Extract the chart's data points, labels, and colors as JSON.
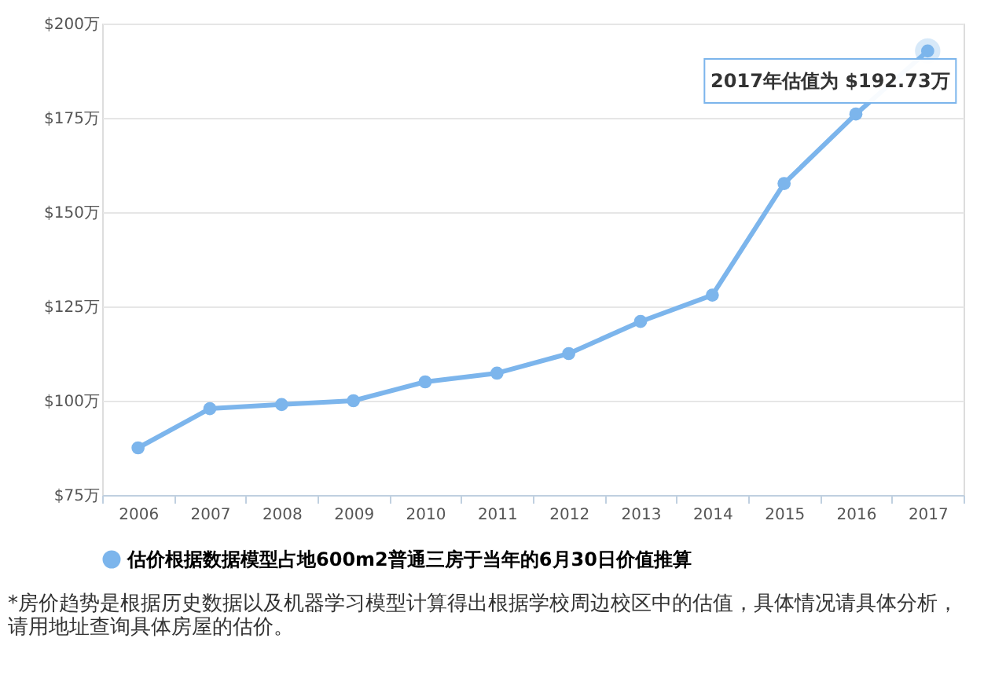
{
  "chart_data": {
    "type": "line",
    "categories": [
      "2006",
      "2007",
      "2008",
      "2009",
      "2010",
      "2011",
      "2012",
      "2013",
      "2014",
      "2015",
      "2016",
      "2017"
    ],
    "series": [
      {
        "name": "估价根据数据模型占地600m2普通三房于当年的6月30日价值推算",
        "color": "#7cb5ec",
        "values": [
          87.5,
          97.9,
          99,
          100,
          105,
          107.3,
          112.5,
          121,
          128,
          157.6,
          176,
          192.73
        ]
      }
    ],
    "ylim": [
      75,
      200
    ],
    "yticks": [
      {
        "value": 75,
        "label": "$75万"
      },
      {
        "value": 100,
        "label": "$100万"
      },
      {
        "value": 125,
        "label": "$125万"
      },
      {
        "value": 150,
        "label": "$150万"
      },
      {
        "value": 175,
        "label": "$175万"
      },
      {
        "value": 200,
        "label": "$200万"
      }
    ],
    "grid": "y",
    "legend": "bottom",
    "marker": "circle",
    "line_style": "solid",
    "annotations": [
      {
        "text": "2017年估值为 $192.73万",
        "x": "2017",
        "y": 192.73
      },
      "*房价趋势是根据历史数据以及机器学习模型计算得出根据学校周边校区中的估值，具体情况请具体分析，请用地址查询具体房屋的估价。"
    ]
  }
}
